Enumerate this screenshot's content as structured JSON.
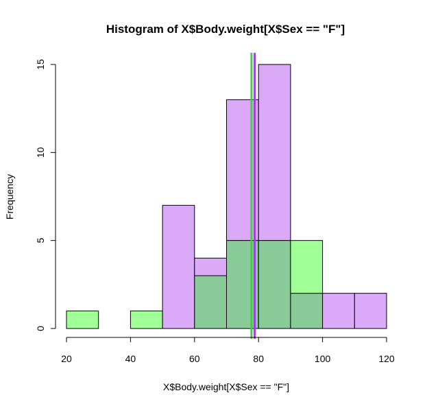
{
  "chart_data": {
    "type": "bar",
    "title": "Histogram of X$Body.weight[X$Sex == \"F\"]",
    "xlabel": "X$Body.weight[X$Sex == \"F\"]",
    "ylabel": "Frequency",
    "xlim": [
      20,
      120
    ],
    "ylim": [
      0,
      15
    ],
    "x_ticks": [
      20,
      40,
      60,
      80,
      100,
      120
    ],
    "y_ticks": [
      0,
      5,
      10,
      15
    ],
    "bin_edges": [
      20,
      30,
      40,
      50,
      60,
      70,
      80,
      90,
      100,
      110,
      120
    ],
    "series": [
      {
        "color": "#DAA9F7",
        "values": [
          0,
          0,
          0,
          7,
          4,
          13,
          15,
          2,
          2,
          2
        ]
      },
      {
        "color": "#A0FF96",
        "values": [
          1,
          0,
          1,
          0,
          3,
          5,
          5,
          5,
          0,
          0
        ]
      }
    ],
    "overlap_color": "#88CB98",
    "vlines": [
      {
        "x": 77.8,
        "color": "#44CC44"
      },
      {
        "x": 78.8,
        "color": "#A040E0"
      }
    ],
    "grid": false,
    "legend": "none"
  }
}
